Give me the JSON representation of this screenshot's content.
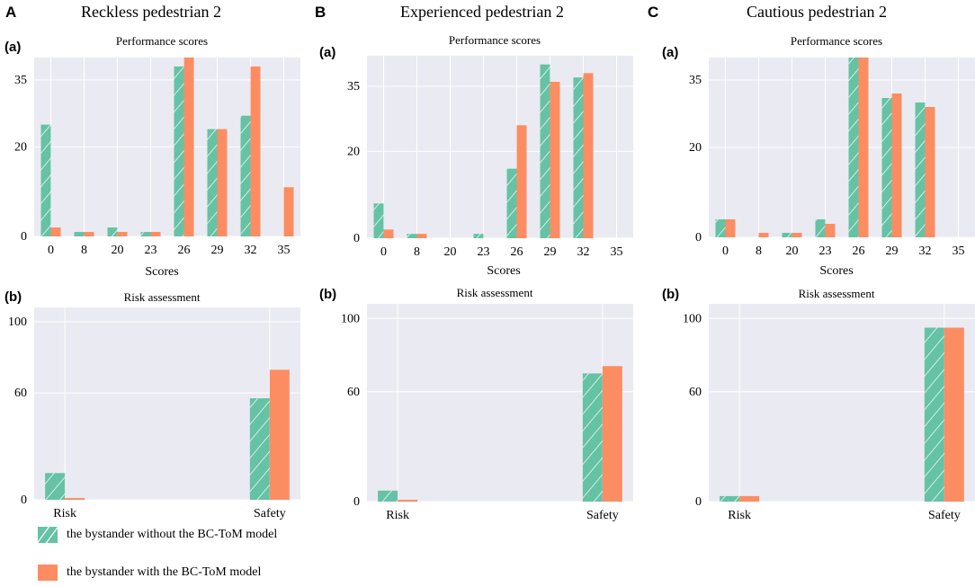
{
  "colors": {
    "without": "#66c2a5",
    "with": "#fc8d62",
    "bg": "#eaeaf2",
    "grid": "#ffffff"
  },
  "panels": [
    {
      "letter": "A",
      "title": "Reckless pedestrian 2"
    },
    {
      "letter": "B",
      "title": "Experienced pedestrian 2"
    },
    {
      "letter": "C",
      "title": "Cautious pedestrian 2"
    }
  ],
  "sub_letters": {
    "a": "(a)",
    "b": "(b)"
  },
  "titles": {
    "performance": "Performance scores",
    "risk": "Risk assessment"
  },
  "xlabel_scores": "Scores",
  "legend": {
    "without": "the bystander without the BC-ToM model",
    "with": "the bystander with the BC-ToM model"
  },
  "chart_data": [
    {
      "type": "bar",
      "id": "A-a",
      "title": "Performance scores",
      "xlabel": "Scores",
      "ylabel": "",
      "categories": [
        "0",
        "8",
        "20",
        "23",
        "26",
        "29",
        "32",
        "35"
      ],
      "ylim": [
        0,
        40
      ],
      "yticks": [
        0,
        20,
        35
      ],
      "series": [
        {
          "name": "the bystander without the BC-ToM model",
          "values": [
            25,
            1,
            2,
            1,
            38,
            24,
            27,
            0
          ]
        },
        {
          "name": "the bystander with the BC-ToM model",
          "values": [
            2,
            1,
            1,
            1,
            40,
            24,
            38,
            11
          ]
        }
      ]
    },
    {
      "type": "bar",
      "id": "A-b",
      "title": "Risk assessment",
      "xlabel": "",
      "ylabel": "",
      "categories": [
        "Risk",
        "Safety"
      ],
      "ylim": [
        0,
        108
      ],
      "yticks": [
        0,
        60,
        100
      ],
      "series": [
        {
          "name": "the bystander without the BC-ToM model",
          "values": [
            15,
            57
          ]
        },
        {
          "name": "the bystander with the BC-ToM model",
          "values": [
            1,
            73
          ]
        }
      ]
    },
    {
      "type": "bar",
      "id": "B-a",
      "title": "Performance scores",
      "xlabel": "Scores",
      "ylabel": "",
      "categories": [
        "0",
        "8",
        "20",
        "23",
        "26",
        "29",
        "32",
        "35"
      ],
      "ylim": [
        0,
        42
      ],
      "yticks": [
        0,
        20,
        35
      ],
      "series": [
        {
          "name": "the bystander without the BC-ToM model",
          "values": [
            8,
            1,
            0,
            1,
            16,
            40,
            37,
            0
          ]
        },
        {
          "name": "the bystander with the BC-ToM model",
          "values": [
            2,
            1,
            0,
            0,
            26,
            36,
            38,
            0
          ]
        }
      ]
    },
    {
      "type": "bar",
      "id": "B-b",
      "title": "Risk assessment",
      "xlabel": "",
      "ylabel": "",
      "categories": [
        "Risk",
        "Safety"
      ],
      "ylim": [
        0,
        108
      ],
      "yticks": [
        0,
        60,
        100
      ],
      "series": [
        {
          "name": "the bystander without the BC-ToM model",
          "values": [
            6,
            70
          ]
        },
        {
          "name": "the bystander with the BC-ToM model",
          "values": [
            1,
            74
          ]
        }
      ]
    },
    {
      "type": "bar",
      "id": "C-a",
      "title": "Performance scores",
      "xlabel": "Scores",
      "ylabel": "",
      "categories": [
        "0",
        "8",
        "20",
        "23",
        "26",
        "29",
        "32",
        "35"
      ],
      "ylim": [
        0,
        40
      ],
      "yticks": [
        0,
        20,
        35
      ],
      "series": [
        {
          "name": "the bystander without the BC-ToM model",
          "values": [
            4,
            0,
            1,
            4,
            40,
            31,
            30,
            0
          ]
        },
        {
          "name": "the bystander with the BC-ToM model",
          "values": [
            4,
            1,
            1,
            3,
            40,
            32,
            29,
            0
          ]
        }
      ]
    },
    {
      "type": "bar",
      "id": "C-b",
      "title": "Risk assessment",
      "xlabel": "",
      "ylabel": "",
      "categories": [
        "Risk",
        "Safety"
      ],
      "ylim": [
        0,
        108
      ],
      "yticks": [
        0,
        60,
        100
      ],
      "series": [
        {
          "name": "the bystander without the BC-ToM model",
          "values": [
            3,
            95
          ]
        },
        {
          "name": "the bystander with the BC-ToM model",
          "values": [
            3,
            95
          ]
        }
      ]
    }
  ]
}
